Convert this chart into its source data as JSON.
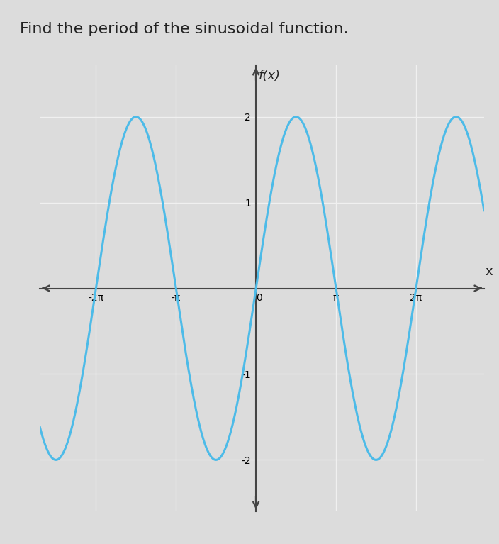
{
  "title": "Find the period of the sinusoidal function.",
  "title_fontsize": 16,
  "xlabel": "x",
  "ylabel": "f(x)",
  "amplitude": 2,
  "xlim_data": [
    -2.7,
    2.85
  ],
  "ylim_data": [
    -2.6,
    2.6
  ],
  "x_ticks_pi": [
    -2,
    -1,
    0,
    1,
    2
  ],
  "x_tick_labels": [
    "-2π",
    "-π",
    "0",
    "π",
    "2π"
  ],
  "y_ticks": [
    -2,
    -1,
    1,
    2
  ],
  "y_tick_labels": [
    "-2",
    "-1",
    "1",
    "2"
  ],
  "curve_color": "#4DBBE8",
  "curve_linewidth": 2.2,
  "background_color": "#DCDCDC",
  "grid_color": "#F0F0F0",
  "axis_color": "#444444",
  "font_color": "#222222",
  "label_fontsize": 13,
  "tick_fontsize": 12,
  "grid_cols": 8,
  "grid_rows": 8
}
